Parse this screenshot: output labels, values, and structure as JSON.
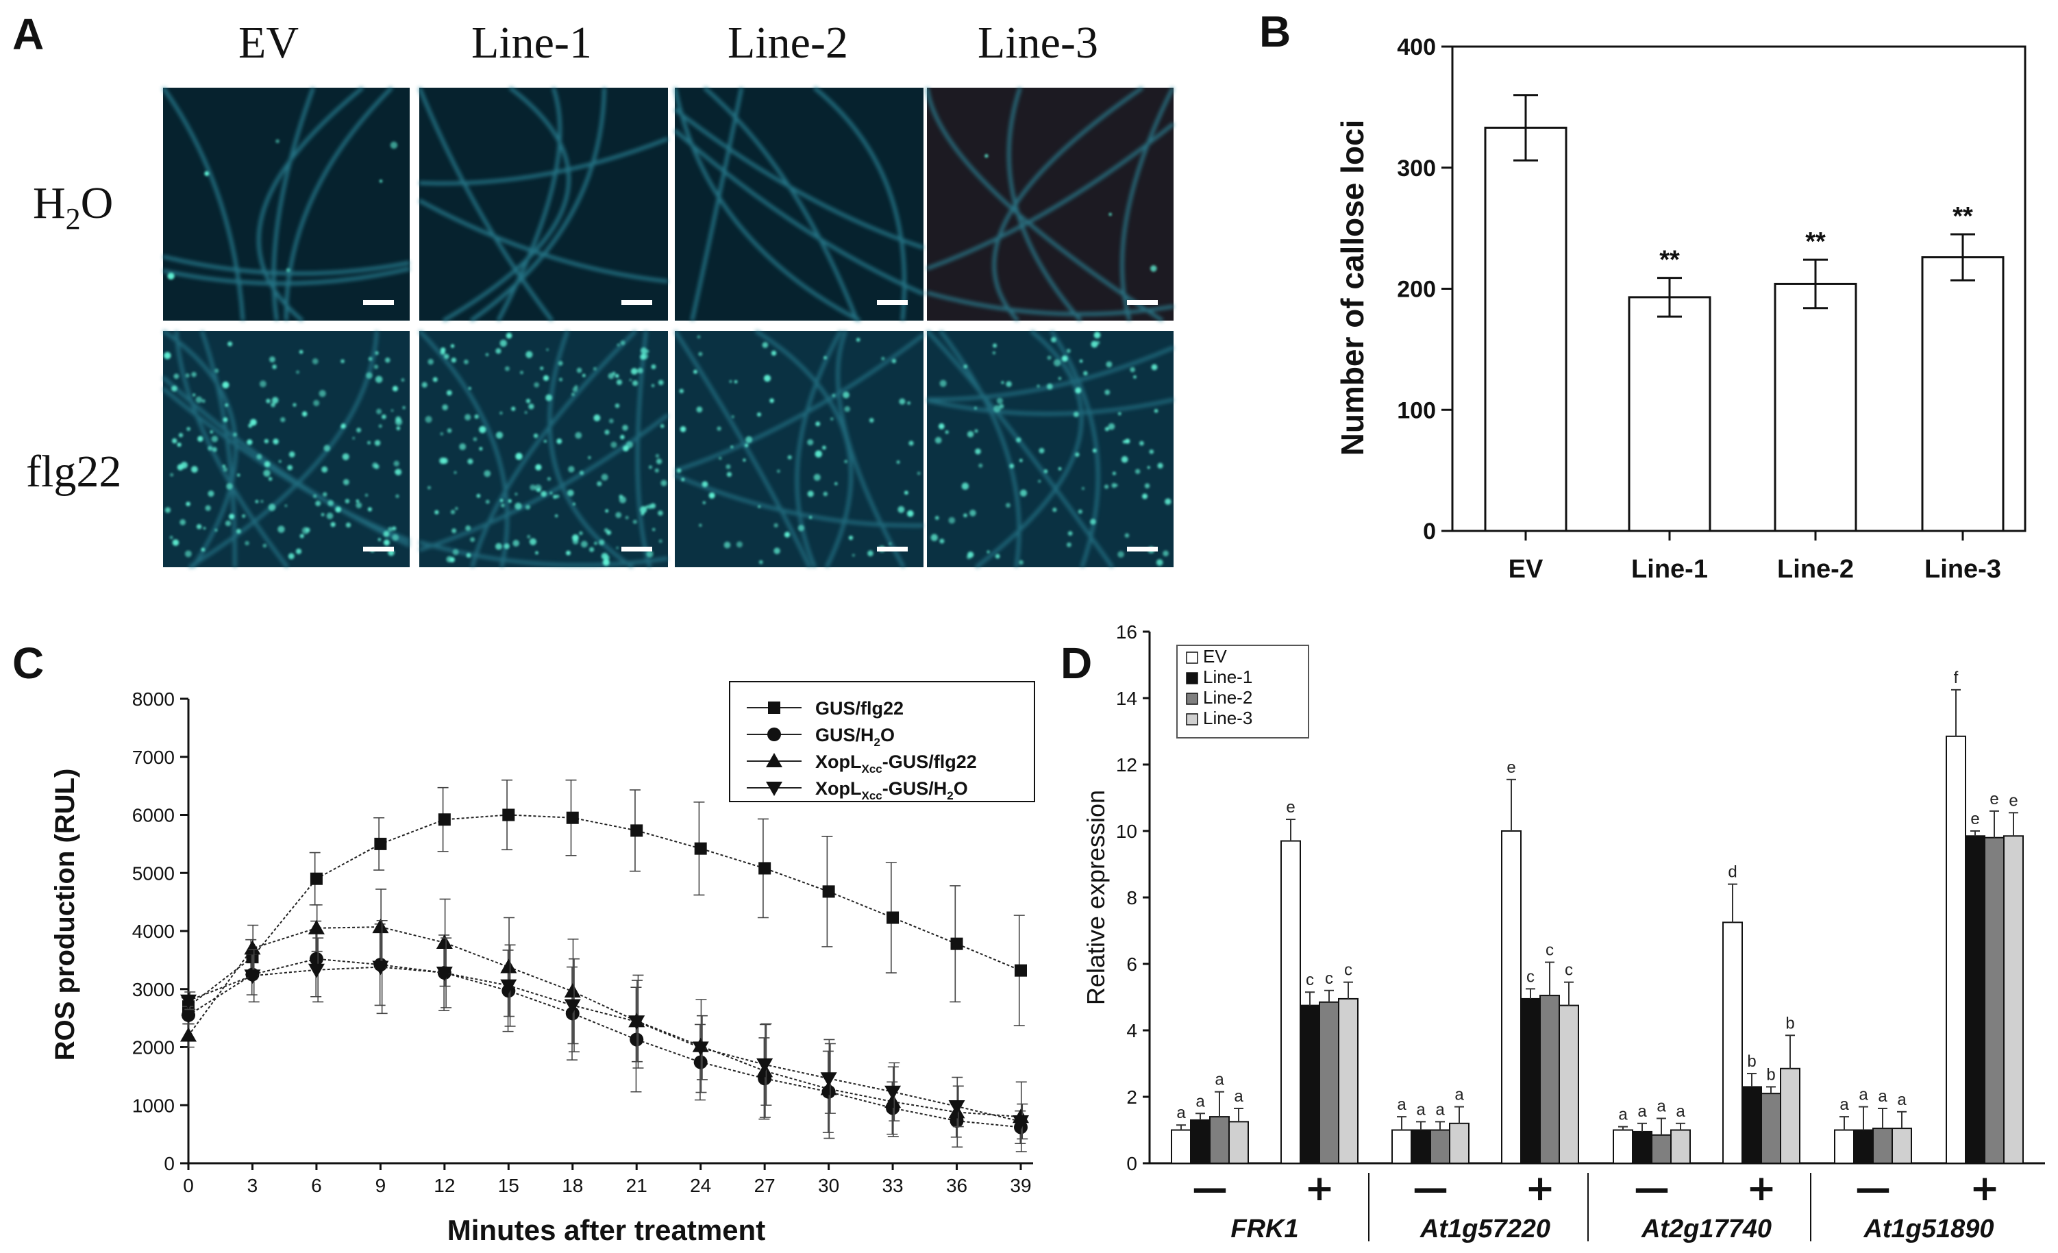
{
  "panel_a": {
    "letter": "A",
    "columns": [
      "EV",
      "Line-1",
      "Line-2",
      "Line-3"
    ],
    "row_h2o": {
      "main": "H",
      "sub": "2",
      "rest": "O"
    },
    "row_flg22": "flg22",
    "colors": {
      "h2o_bg": "#06222e",
      "flg22_bg": "#0a3142",
      "vein": "#2f8fa3",
      "spot": "#5ff0d4"
    }
  },
  "chart_data": [
    {
      "panel": "B",
      "type": "bar",
      "title": "",
      "categories": [
        "EV",
        "Line-1",
        "Line-2",
        "Line-3"
      ],
      "values": [
        333,
        193,
        204,
        226
      ],
      "errors": [
        27,
        16,
        20,
        19
      ],
      "annotations": [
        "",
        "**",
        "**",
        "**"
      ],
      "ylabel": "Number of callose loci",
      "xlabel": "",
      "ylim": [
        0,
        400
      ],
      "yticks": [
        0,
        100,
        200,
        300,
        400
      ]
    },
    {
      "panel": "C",
      "type": "line",
      "x": [
        0,
        3,
        6,
        9,
        12,
        15,
        18,
        21,
        24,
        27,
        30,
        33,
        36,
        39
      ],
      "series": [
        {
          "name": "GUS/flg22",
          "marker": "square",
          "values": [
            2700,
            3550,
            4900,
            5500,
            5920,
            6000,
            5950,
            5730,
            5420,
            5080,
            4680,
            4230,
            3780,
            3320
          ],
          "errors": [
            150,
            300,
            450,
            450,
            550,
            600,
            650,
            700,
            800,
            850,
            950,
            950,
            1000,
            950
          ]
        },
        {
          "name": "GUS/H2O",
          "marker": "circle",
          "values": [
            2550,
            3250,
            3520,
            3420,
            3280,
            2970,
            2580,
            2130,
            1740,
            1460,
            1230,
            950,
            730,
            620
          ],
          "errors": [
            150,
            350,
            650,
            700,
            650,
            700,
            800,
            900,
            650,
            700,
            700,
            450,
            280,
            280
          ]
        },
        {
          "name": "XopL-GUS/flg22",
          "marker": "triangle-up",
          "values": [
            2200,
            3700,
            4050,
            4070,
            3800,
            3380,
            2960,
            2450,
            2020,
            1590,
            1280,
            1060,
            880,
            800
          ],
          "errors": [
            200,
            400,
            400,
            650,
            750,
            850,
            900,
            700,
            800,
            800,
            850,
            600,
            600,
            600
          ]
        },
        {
          "name": "XopL-GUS/H2O",
          "marker": "triangle-down",
          "values": [
            2800,
            3230,
            3330,
            3380,
            3280,
            3060,
            2720,
            2440,
            1990,
            1700,
            1460,
            1230,
            980,
            720
          ],
          "errors": [
            150,
            450,
            550,
            800,
            600,
            700,
            800,
            800,
            550,
            700,
            600,
            500,
            350,
            300
          ]
        }
      ],
      "legend_labels": [
        {
          "text": "GUS/flg22"
        },
        {
          "main": "GUS/H",
          "sub": "2",
          "rest": "O"
        },
        {
          "main": "XopL",
          "sub": "Xcc",
          "rest": "-GUS/flg22"
        },
        {
          "main": "XopL",
          "sub": "Xcc",
          "rest": "-GUS/H",
          "sub2": "2",
          "rest2": "O"
        }
      ],
      "xlabel": "Minutes after treatment",
      "ylabel": "ROS production (RUL)",
      "xlim": [
        0,
        40
      ],
      "ylim": [
        0,
        8000
      ],
      "xticks": [
        0,
        3,
        6,
        9,
        12,
        15,
        18,
        21,
        24,
        27,
        30,
        33,
        36,
        39
      ],
      "yticks": [
        0,
        1000,
        2000,
        3000,
        4000,
        5000,
        6000,
        7000,
        8000
      ],
      "legend_position": "top-right"
    },
    {
      "panel": "D",
      "type": "bar",
      "groups": [
        {
          "gene": "FRK1",
          "conditions": [
            {
              "sign": "—",
              "values": [
                1.0,
                1.3,
                1.4,
                1.25
              ],
              "errors": [
                0.15,
                0.2,
                0.75,
                0.4
              ],
              "letters": [
                "a",
                "a",
                "a",
                "a"
              ]
            },
            {
              "sign": "+",
              "values": [
                9.7,
                4.75,
                4.85,
                4.95
              ],
              "errors": [
                0.65,
                0.4,
                0.35,
                0.5
              ],
              "letters": [
                "e",
                "c",
                "c",
                "c"
              ]
            }
          ]
        },
        {
          "gene": "At1g57220",
          "conditions": [
            {
              "sign": "—",
              "values": [
                1.0,
                1.0,
                1.0,
                1.2
              ],
              "errors": [
                0.4,
                0.25,
                0.25,
                0.5
              ],
              "letters": [
                "a",
                "a",
                "a",
                "a"
              ]
            },
            {
              "sign": "+",
              "values": [
                10.0,
                4.95,
                5.05,
                4.75
              ],
              "errors": [
                1.55,
                0.3,
                1.0,
                0.7
              ],
              "letters": [
                "e",
                "c",
                "c",
                "c"
              ]
            }
          ]
        },
        {
          "gene": "At2g17740",
          "conditions": [
            {
              "sign": "—",
              "values": [
                1.0,
                0.95,
                0.85,
                1.0
              ],
              "errors": [
                0.1,
                0.25,
                0.5,
                0.2
              ],
              "letters": [
                "a",
                "a",
                "a",
                "a"
              ]
            },
            {
              "sign": "+",
              "values": [
                7.25,
                2.3,
                2.1,
                2.85
              ],
              "errors": [
                1.15,
                0.4,
                0.2,
                1.0
              ],
              "letters": [
                "d",
                "b",
                "b",
                "b"
              ]
            }
          ]
        },
        {
          "gene": "At1g51890",
          "conditions": [
            {
              "sign": "—",
              "values": [
                1.0,
                1.0,
                1.05,
                1.05
              ],
              "errors": [
                0.4,
                0.7,
                0.6,
                0.5
              ],
              "letters": [
                "a",
                "a",
                "a",
                "a"
              ]
            },
            {
              "sign": "+",
              "values": [
                12.85,
                9.85,
                9.8,
                9.85
              ],
              "errors": [
                1.4,
                0.15,
                0.8,
                0.7
              ],
              "letters": [
                "f",
                "e",
                "e",
                "e"
              ]
            }
          ]
        }
      ],
      "series": [
        "EV",
        "Line-1",
        "Line-2",
        "Line-3"
      ],
      "series_colors": [
        "#ffffff",
        "#111111",
        "#7f7f7f",
        "#d0d0d0"
      ],
      "ylabel": "Relative expression",
      "xlabel": "",
      "ylim": [
        0,
        16
      ],
      "yticks": [
        0,
        2,
        4,
        6,
        8,
        10,
        12,
        14,
        16
      ],
      "legend_position": "top-left"
    }
  ]
}
